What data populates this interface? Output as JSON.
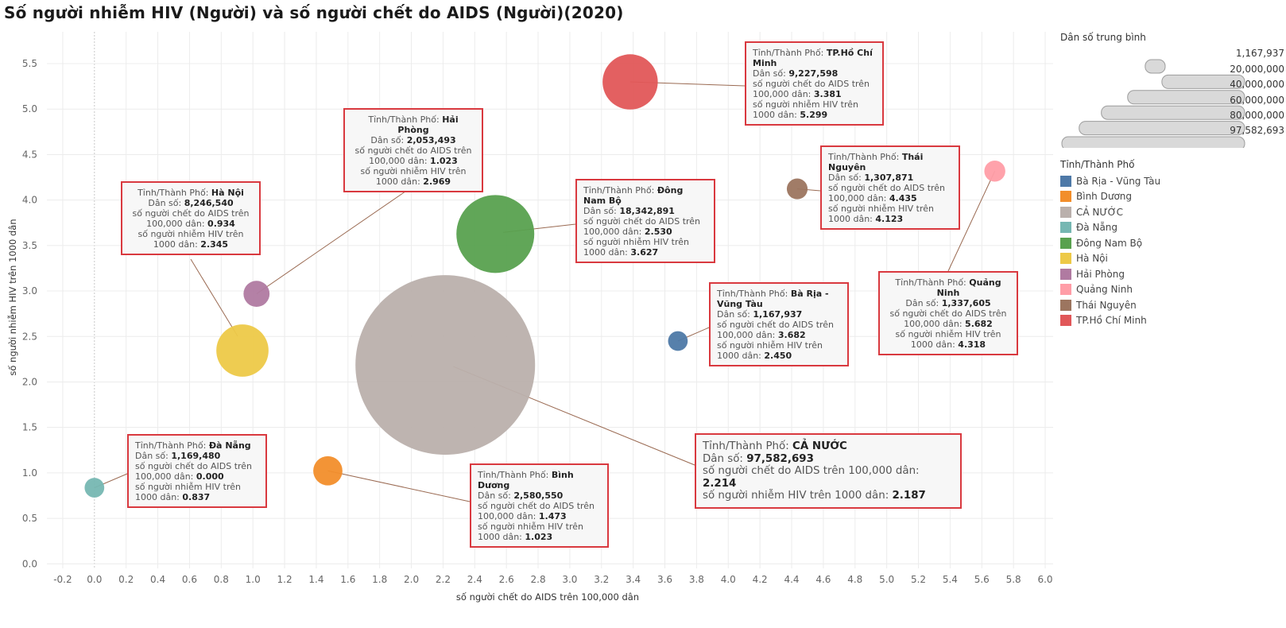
{
  "title": "Số người nhiễm HIV (Người)  và số người chết do AIDS (Người)(2020)",
  "chart_data": {
    "type": "scatter",
    "xlabel": "số người chết do AIDS trên 100,000 dân",
    "ylabel": "số người nhiễm HIV trên 1000 dân",
    "xlim": [
      -0.3,
      6.05
    ],
    "ylim": [
      -0.05,
      5.85
    ],
    "x_ticks": [
      "-0.2",
      "0.0",
      "0.2",
      "0.4",
      "0.6",
      "0.8",
      "1.0",
      "1.2",
      "1.4",
      "1.6",
      "1.8",
      "2.0",
      "2.2",
      "2.4",
      "2.6",
      "2.8",
      "3.0",
      "3.2",
      "3.4",
      "3.6",
      "3.8",
      "4.0",
      "4.2",
      "4.4",
      "4.6",
      "4.8",
      "5.0",
      "5.2",
      "5.4",
      "5.6",
      "5.8",
      "6.0"
    ],
    "y_ticks": [
      "0.0",
      "0.5",
      "1.0",
      "1.5",
      "2.0",
      "2.5",
      "3.0",
      "3.5",
      "4.0",
      "4.5",
      "5.0",
      "5.5"
    ],
    "size_by": "Dân số trung bình",
    "color_by": "Tỉnh/Thành Phố",
    "points": [
      {
        "name": "Bà Rịa - Vũng Tàu",
        "x": 3.682,
        "y": 2.45,
        "pop": 1167937,
        "color": "#4e79a7"
      },
      {
        "name": "Bình Dương",
        "x": 1.473,
        "y": 1.023,
        "pop": 2580550,
        "color": "#f28e2b"
      },
      {
        "name": "CẢ NƯỚC",
        "x": 2.214,
        "y": 2.187,
        "pop": 97582693,
        "color": "#bab0ac"
      },
      {
        "name": "Đà Nẵng",
        "x": 0.0,
        "y": 0.837,
        "pop": 1169480,
        "color": "#76b7b2"
      },
      {
        "name": "Đông Nam Bộ",
        "x": 2.53,
        "y": 3.627,
        "pop": 18342891,
        "color": "#59a14f"
      },
      {
        "name": "Hà Nội",
        "x": 0.934,
        "y": 2.345,
        "pop": 8246540,
        "color": "#edc948"
      },
      {
        "name": "Hải Phòng",
        "x": 1.023,
        "y": 2.969,
        "pop": 2053493,
        "color": "#b07aa1"
      },
      {
        "name": "Quảng Ninh",
        "x": 5.682,
        "y": 4.318,
        "pop": 1337605,
        "color": "#ff9da7"
      },
      {
        "name": "Thái Nguyên",
        "x": 4.435,
        "y": 4.123,
        "pop": 1307871,
        "color": "#9c755f"
      },
      {
        "name": "TP.Hồ Chí Minh",
        "x": 3.381,
        "y": 5.299,
        "pop": 9227598,
        "color": "#e15759"
      }
    ]
  },
  "callouts": [
    {
      "key": "hcm",
      "l1": "Tỉnh/Thành Phố: ",
      "n1": "TP.Hồ Chí Minh",
      "l2": "Dân số: ",
      "n2": "9,227,598",
      "l3": "số người chết do AIDS trên 100,000 dân: ",
      "n3": "3.381",
      "l4": "số người nhiễm HIV trên 1000 dân: ",
      "n4": "5.299"
    },
    {
      "key": "hp",
      "l1": "Tỉnh/Thành Phố: ",
      "n1": "Hải Phòng",
      "l2": "Dân số: ",
      "n2": "2,053,493",
      "l3": "số người chết do AIDS trên 100,000 dân: ",
      "n3": "1.023",
      "l4": "số người nhiễm HIV trên 1000 dân: ",
      "n4": "2.969"
    },
    {
      "key": "tn",
      "l1": "Tỉnh/Thành Phố: ",
      "n1": "Thái Nguyên",
      "l2": "Dân số: ",
      "n2": "1,307,871",
      "l3": "số người chết do AIDS trên 100,000 dân: ",
      "n3": "4.435",
      "l4": "số người nhiễm HIV trên 1000 dân: ",
      "n4": "4.123"
    },
    {
      "key": "hn",
      "l1": "Tỉnh/Thành Phố: ",
      "n1": "Hà Nội",
      "l2": "Dân số: ",
      "n2": "8,246,540",
      "l3": "số người chết do AIDS trên 100,000 dân: ",
      "n3": "0.934",
      "l4": "số người nhiễm HIV trên 1000 dân: ",
      "n4": "2.345"
    },
    {
      "key": "dnb",
      "l1": "Tỉnh/Thành Phố: ",
      "n1": "Đông Nam Bộ",
      "l2": "Dân số: ",
      "n2": "18,342,891",
      "l3": "số người chết do AIDS trên 100,000 dân: ",
      "n3": "2.530",
      "l4": "số người nhiễm HIV trên 1000 dân: ",
      "n4": "3.627"
    },
    {
      "key": "qn",
      "l1": "Tỉnh/Thành Phố: ",
      "n1": "Quảng Ninh",
      "l2": "Dân số: ",
      "n2": "1,337,605",
      "l3": "số người chết do AIDS trên 100,000 dân: ",
      "n3": "5.682",
      "l4": "số người nhiễm HIV trên 1000 dân: ",
      "n4": "4.318"
    },
    {
      "key": "brvt",
      "l1": "Tỉnh/Thành Phố: ",
      "n1": "Bà Rịa - Vũng Tàu",
      "l2": "Dân số: ",
      "n2": "1,167,937",
      "l3": "số người chết do AIDS trên 100,000 dân: ",
      "n3": "3.682",
      "l4": "số người nhiễm HIV trên 1000 dân: ",
      "n4": "2.450"
    },
    {
      "key": "dn",
      "l1": "Tỉnh/Thành Phố: ",
      "n1": "Đà Nẵng",
      "l2": "Dân số: ",
      "n2": "1,169,480",
      "l3": "số người chết do AIDS trên 100,000 dân: ",
      "n3": "0.000",
      "l4": "số người nhiễm HIV trên 1000 dân: ",
      "n4": "0.837"
    },
    {
      "key": "bd",
      "l1": "Tỉnh/Thành Phố: ",
      "n1": "Bình Dương",
      "l2": "Dân số: ",
      "n2": "2,580,550",
      "l3": "số người chết do AIDS trên 100,000 dân: ",
      "n3": "1.473",
      "l4": "số người nhiễm HIV trên 1000 dân: ",
      "n4": "1.023"
    },
    {
      "key": "cn",
      "l1": "Tỉnh/Thành Phố: ",
      "n1": "CẢ NƯỚC",
      "l2": "Dân số: ",
      "n2": "97,582,693",
      "l3": "số người chết do AIDS trên 100,000 dân: ",
      "n3": "2.214",
      "l4": "số người nhiễm HIV trên 1000 dân: ",
      "n4": "2.187"
    }
  ],
  "legend": {
    "size_title": "Dân số trung bình",
    "size_labels": [
      "1,167,937",
      "20,000,000",
      "40,000,000",
      "60,000,000",
      "80,000,000",
      "97,582,693"
    ],
    "color_title": "Tỉnh/Thành Phố",
    "items": [
      {
        "label": "Bà Rịa - Vũng Tàu",
        "color": "#4e79a7"
      },
      {
        "label": "Bình Dương",
        "color": "#f28e2b"
      },
      {
        "label": "CẢ NƯỚC",
        "color": "#bab0ac"
      },
      {
        "label": "Đà Nẵng",
        "color": "#76b7b2"
      },
      {
        "label": "Đông Nam Bộ",
        "color": "#59a14f"
      },
      {
        "label": "Hà Nội",
        "color": "#edc948"
      },
      {
        "label": "Hải Phòng",
        "color": "#b07aa1"
      },
      {
        "label": "Quảng Ninh",
        "color": "#ff9da7"
      },
      {
        "label": "Thái Nguyên",
        "color": "#9c755f"
      },
      {
        "label": "TP.Hồ Chí Minh",
        "color": "#e15759"
      }
    ]
  }
}
